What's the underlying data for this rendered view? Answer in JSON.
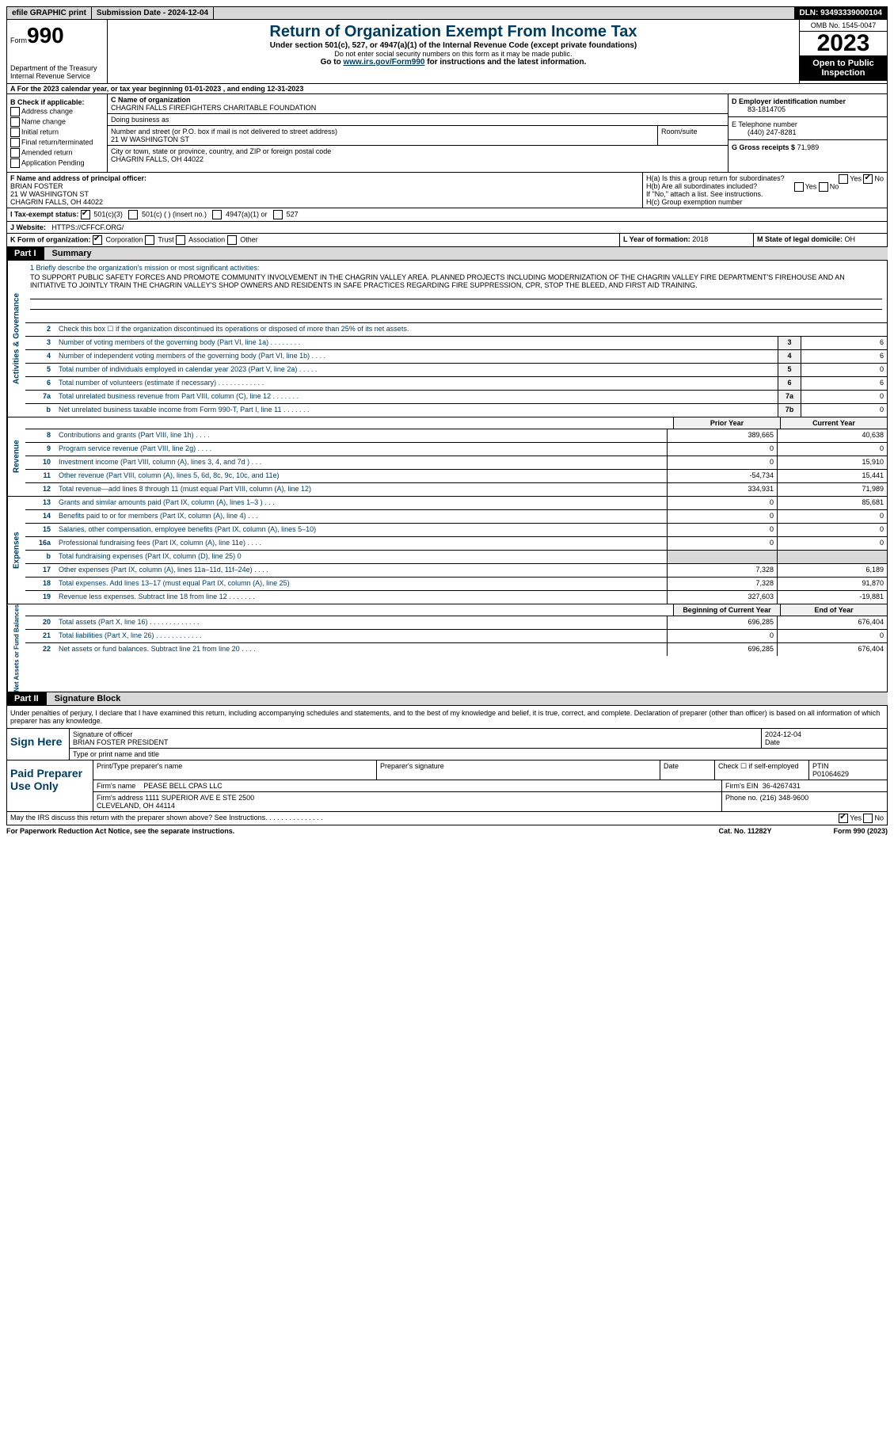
{
  "topbar": {
    "efile": "efile GRAPHIC print",
    "submission": "Submission Date - 2024-12-04",
    "dln": "DLN: 93493339000104"
  },
  "header": {
    "form_label": "Form",
    "form_number": "990",
    "title": "Return of Organization Exempt From Income Tax",
    "subtitle": "Under section 501(c), 527, or 4947(a)(1) of the Internal Revenue Code (except private foundations)",
    "warning": "Do not enter social security numbers on this form as it may be made public.",
    "goto": "Go to www.irs.gov/Form990 for instructions and the latest information.",
    "dept": "Department of the Treasury Internal Revenue Service",
    "omb": "OMB No. 1545-0047",
    "year": "2023",
    "inspection": "Open to Public Inspection"
  },
  "section_a": "A For the 2023 calendar year, or tax year beginning 01-01-2023   , and ending 12-31-2023",
  "col_b": {
    "label": "B Check if applicable:",
    "items": [
      "Address change",
      "Name change",
      "Initial return",
      "Final return/terminated",
      "Amended return",
      "Application Pending"
    ]
  },
  "col_c": {
    "name_label": "C Name of organization",
    "name": "CHAGRIN FALLS FIREFIGHTERS CHARITABLE FOUNDATION",
    "dba_label": "Doing business as",
    "addr_label": "Number and street (or P.O. box if mail is not delivered to street address)",
    "addr": "21 W WASHINGTON ST",
    "room_label": "Room/suite",
    "city_label": "City or town, state or province, country, and ZIP or foreign postal code",
    "city": "CHAGRIN FALLS, OH  44022"
  },
  "col_d": {
    "ein_label": "D Employer identification number",
    "ein": "83-1814705",
    "phone_label": "E Telephone number",
    "phone": "(440) 247-8281",
    "gross_label": "G Gross receipts $",
    "gross": "71,989"
  },
  "officer": {
    "label": "F  Name and address of principal officer:",
    "name": "BRIAN FOSTER",
    "addr1": "21 W WASHINGTON ST",
    "addr2": "CHAGRIN FALLS, OH  44022"
  },
  "h": {
    "ha": "H(a)  Is this a group return for subordinates?",
    "hb": "H(b)  Are all subordinates included?",
    "hb_note": "If \"No,\" attach a list. See instructions.",
    "hc": "H(c)  Group exemption number",
    "yes": "Yes",
    "no": "No"
  },
  "row_i": {
    "label": "I  Tax-exempt status:",
    "opts": [
      "501(c)(3)",
      "501(c) (  ) (insert no.)",
      "4947(a)(1) or",
      "527"
    ]
  },
  "row_j": {
    "label": "J  Website:",
    "url": "HTTPS://CFFCF.ORG/"
  },
  "row_k": {
    "label": "K Form of organization:",
    "opts": [
      "Corporation",
      "Trust",
      "Association",
      "Other"
    ]
  },
  "row_l": {
    "label": "L Year of formation:",
    "val": "2018"
  },
  "row_m": {
    "label": "M State of legal domicile:",
    "val": "OH"
  },
  "part1": {
    "num": "Part I",
    "title": "Summary"
  },
  "mission": {
    "label": "1  Briefly describe the organization's mission or most significant activities:",
    "text": "TO SUPPORT PUBLIC SAFETY FORCES AND PROMOTE COMMUNITY INVOLVEMENT IN THE CHAGRIN VALLEY AREA. PLANNED PROJECTS INCLUDING MODERNIZATION OF THE CHAGRIN VALLEY FIRE DEPARTMENT'S FIREHOUSE AND AN INITIATIVE TO JOINTLY TRAIN THE CHAGRIN VALLEY'S SHOP OWNERS AND RESIDENTS IN SAFE PRACTICES REGARDING FIRE SUPPRESSION, CPR, STOP THE BLEED, AND FIRST AID TRAINING."
  },
  "vtabs": {
    "gov": "Activities & Governance",
    "rev": "Revenue",
    "exp": "Expenses",
    "net": "Net Assets or Fund Balances"
  },
  "lines_gov": [
    {
      "n": "2",
      "d": "Check this box ☐  if the organization discontinued its operations or disposed of more than 25% of its net assets."
    },
    {
      "n": "3",
      "d": "Number of voting members of the governing body (Part VI, line 1a)  .  .  .  .  .  .  .  .",
      "b": "3",
      "v": "6"
    },
    {
      "n": "4",
      "d": "Number of independent voting members of the governing body (Part VI, line 1b)  .  .  .  .",
      "b": "4",
      "v": "6"
    },
    {
      "n": "5",
      "d": "Total number of individuals employed in calendar year 2023 (Part V, line 2a)  .  .  .  .  .",
      "b": "5",
      "v": "0"
    },
    {
      "n": "6",
      "d": "Total number of volunteers (estimate if necessary)   .  .  .  .  .  .  .  .  .  .  .  .",
      "b": "6",
      "v": "6"
    },
    {
      "n": "7a",
      "d": "Total unrelated business revenue from Part VIII, column (C), line 12   .  .  .  .  .  .  .",
      "b": "7a",
      "v": "0"
    },
    {
      "n": "b",
      "d": "Net unrelated business taxable income from Form 990-T, Part I, line 11  .  .  .  .  .  .  .",
      "b": "7b",
      "v": "0"
    }
  ],
  "col_headers": {
    "prior": "Prior Year",
    "current": "Current Year",
    "boy": "Beginning of Current Year",
    "eoy": "End of Year"
  },
  "lines_rev": [
    {
      "n": "8",
      "d": "Contributions and grants (Part VIII, line 1h)  .  .  .  .",
      "p": "389,665",
      "c": "40,638"
    },
    {
      "n": "9",
      "d": "Program service revenue (Part VIII, line 2g)  .  .  .  .",
      "p": "0",
      "c": "0"
    },
    {
      "n": "10",
      "d": "Investment income (Part VIII, column (A), lines 3, 4, and 7d )   .  .  .",
      "p": "0",
      "c": "15,910"
    },
    {
      "n": "11",
      "d": "Other revenue (Part VIII, column (A), lines 5, 6d, 8c, 9c, 10c, and 11e)",
      "p": "-54,734",
      "c": "15,441"
    },
    {
      "n": "12",
      "d": "Total revenue—add lines 8 through 11 (must equal Part VIII, column (A), line 12)",
      "p": "334,931",
      "c": "71,989"
    }
  ],
  "lines_exp": [
    {
      "n": "13",
      "d": "Grants and similar amounts paid (Part IX, column (A), lines 1–3 )  .  .  .",
      "p": "0",
      "c": "85,681"
    },
    {
      "n": "14",
      "d": "Benefits paid to or for members (Part IX, column (A), line 4)  .  .  .",
      "p": "0",
      "c": "0"
    },
    {
      "n": "15",
      "d": "Salaries, other compensation, employee benefits (Part IX, column (A), lines 5–10)",
      "p": "0",
      "c": "0"
    },
    {
      "n": "16a",
      "d": "Professional fundraising fees (Part IX, column (A), line 11e)  .  .  .  .",
      "p": "0",
      "c": "0"
    },
    {
      "n": "b",
      "d": "Total fundraising expenses (Part IX, column (D), line 25) 0",
      "p": "grey",
      "c": "grey"
    },
    {
      "n": "17",
      "d": "Other expenses (Part IX, column (A), lines 11a–11d, 11f–24e)  .  .  .  .",
      "p": "7,328",
      "c": "6,189"
    },
    {
      "n": "18",
      "d": "Total expenses. Add lines 13–17 (must equal Part IX, column (A), line 25)",
      "p": "7,328",
      "c": "91,870"
    },
    {
      "n": "19",
      "d": "Revenue less expenses. Subtract line 18 from line 12  .  .  .  .  .  .  .",
      "p": "327,603",
      "c": "-19,881"
    }
  ],
  "lines_net": [
    {
      "n": "20",
      "d": "Total assets (Part X, line 16)  .  .  .  .  .  .  .  .  .  .  .  .  .",
      "p": "696,285",
      "c": "676,404"
    },
    {
      "n": "21",
      "d": "Total liabilities (Part X, line 26)  .  .  .  .  .  .  .  .  .  .  .  .",
      "p": "0",
      "c": "0"
    },
    {
      "n": "22",
      "d": "Net assets or fund balances. Subtract line 21 from line 20  .  .  .  .",
      "p": "696,285",
      "c": "676,404"
    }
  ],
  "part2": {
    "num": "Part II",
    "title": "Signature Block"
  },
  "sig": {
    "declaration": "Under penalties of perjury, I declare that I have examined this return, including accompanying schedules and statements, and to the best of my knowledge and belief, it is true, correct, and complete. Declaration of preparer (other than officer) is based on all information of which preparer has any knowledge.",
    "sign_here": "Sign Here",
    "sig_label": "Signature of officer",
    "sig_name": "BRIAN FOSTER  PRESIDENT",
    "sig_type": "Type or print name and title",
    "date_label": "Date",
    "date": "2024-12-04",
    "paid": "Paid Preparer Use Only",
    "prep_name_label": "Print/Type preparer's name",
    "prep_sig_label": "Preparer's signature",
    "check_label": "Check ☐ if self-employed",
    "ptin_label": "PTIN",
    "ptin": "P01064629",
    "firm_name_label": "Firm's name",
    "firm_name": "PEASE BELL CPAS LLC",
    "firm_ein_label": "Firm's EIN",
    "firm_ein": "36-4267431",
    "firm_addr_label": "Firm's address",
    "firm_addr": "1111 SUPERIOR AVE E STE 2500\nCLEVELAND, OH  44114",
    "firm_phone_label": "Phone no.",
    "firm_phone": "(216) 348-9600",
    "discuss": "May the IRS discuss this return with the preparer shown above? See Instructions.  .  .  .  .  .  .  .  .  .  .  .  .  .  ."
  },
  "footer": {
    "pra": "For Paperwork Reduction Act Notice, see the separate instructions.",
    "cat": "Cat. No. 11282Y",
    "form": "Form 990 (2023)"
  }
}
